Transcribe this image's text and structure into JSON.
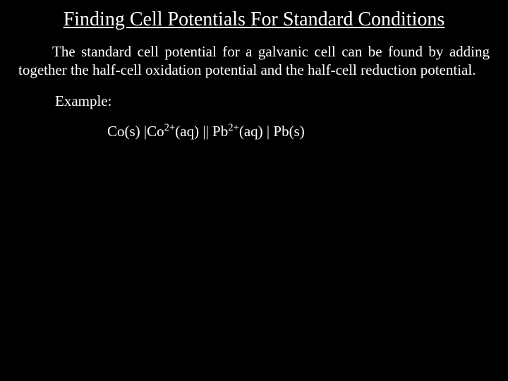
{
  "title": "Finding Cell Potentials For Standard Conditions",
  "bodyText": "The standard cell potential for a galvanic cell can be found by adding together the half-cell oxidation potential and the half-cell reduction potential.",
  "exampleLabel": "Example:",
  "cellNotation": {
    "anodeSolid": "Co(s)",
    "anodeIon": "Co",
    "anodeCharge": "2+",
    "anodeState": "(aq)",
    "cathodeIon": "Pb",
    "cathodeCharge": "2+",
    "cathodeState": "(aq)",
    "cathodeSolid": "Pb(s)"
  },
  "style": {
    "backgroundColor": "#000000",
    "textColor": "#ffffff",
    "titleFontSize": 28,
    "bodyFontSize": 21,
    "fontFamily": "Times New Roman"
  }
}
